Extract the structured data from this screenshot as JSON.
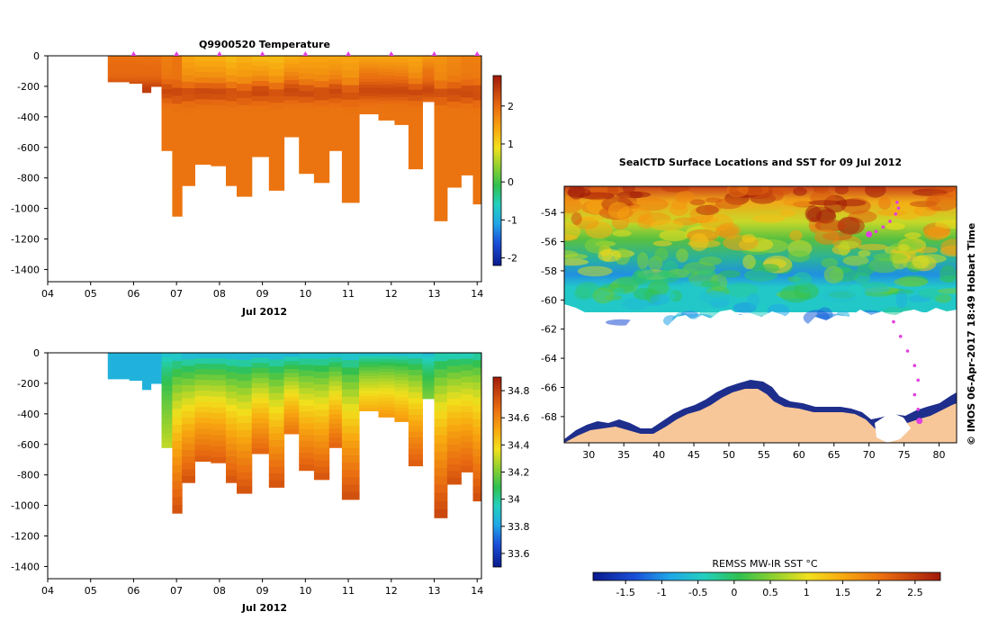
{
  "chart_data": [
    {
      "type": "heatmap",
      "title": "Q9900520  Temperature",
      "xlabel": "Jul 2012",
      "ylabel": "",
      "x_ticks": [
        "04",
        "05",
        "06",
        "07",
        "08",
        "09",
        "10",
        "11",
        "12",
        "13",
        "14"
      ],
      "x_range": [
        4,
        14.1
      ],
      "y_ticks": [
        "0",
        "-200",
        "-400",
        "-600",
        "-800",
        "-1000",
        "-1200",
        "-1400"
      ],
      "y_range": [
        -1480,
        0
      ],
      "colorbar_ticks": [
        "2",
        "1",
        "0",
        "-1",
        "-2"
      ],
      "colorbar_range": [
        -2.2,
        2.8
      ],
      "profile_marker_days": [
        6,
        7,
        8,
        9,
        10,
        11,
        12,
        13,
        14
      ],
      "profiles": [
        {
          "day": 5.7,
          "depth": -170,
          "surf": 1.9,
          "deep": 2.0
        },
        {
          "day": 6.1,
          "depth": -180,
          "surf": 1.9,
          "deep": 2.0
        },
        {
          "day": 6.3,
          "depth": -240,
          "surf": 1.9,
          "deep": 2.0
        },
        {
          "day": 6.5,
          "depth": -200,
          "surf": 1.9,
          "deep": 2.0
        },
        {
          "day": 6.8,
          "depth": -620,
          "surf": 1.8,
          "deep": 1.9
        },
        {
          "day": 7.0,
          "depth": -1050,
          "surf": 1.9,
          "deep": 1.9
        },
        {
          "day": 7.25,
          "depth": -850,
          "surf": 1.4,
          "deep": 1.9
        },
        {
          "day": 7.6,
          "depth": -710,
          "surf": 1.3,
          "deep": 1.9
        },
        {
          "day": 8.0,
          "depth": -720,
          "surf": 1.3,
          "deep": 1.9
        },
        {
          "day": 8.3,
          "depth": -850,
          "surf": 1.2,
          "deep": 1.9
        },
        {
          "day": 8.5,
          "depth": -920,
          "surf": 1.3,
          "deep": 1.9
        },
        {
          "day": 9.0,
          "depth": -660,
          "surf": 1.2,
          "deep": 1.9
        },
        {
          "day": 9.3,
          "depth": -880,
          "surf": 1.2,
          "deep": 1.9
        },
        {
          "day": 9.7,
          "depth": -530,
          "surf": 1.3,
          "deep": 1.9
        },
        {
          "day": 10.0,
          "depth": -770,
          "surf": 1.4,
          "deep": 1.9
        },
        {
          "day": 10.4,
          "depth": -830,
          "surf": 1.4,
          "deep": 1.9
        },
        {
          "day": 10.7,
          "depth": -620,
          "surf": 1.4,
          "deep": 1.9
        },
        {
          "day": 11.0,
          "depth": -960,
          "surf": 1.4,
          "deep": 1.9
        },
        {
          "day": 11.5,
          "depth": -380,
          "surf": 1.4,
          "deep": 1.9
        },
        {
          "day": 11.9,
          "depth": -420,
          "surf": 1.4,
          "deep": 1.9
        },
        {
          "day": 12.25,
          "depth": -450,
          "surf": 1.4,
          "deep": 1.9
        },
        {
          "day": 12.55,
          "depth": -740,
          "surf": 1.4,
          "deep": 1.9
        },
        {
          "day": 12.9,
          "depth": -300,
          "surf": 1.5,
          "deep": 1.9
        },
        {
          "day": 13.1,
          "depth": -1080,
          "surf": 1.6,
          "deep": 1.9
        },
        {
          "day": 13.5,
          "depth": -860,
          "surf": 1.7,
          "deep": 1.9
        },
        {
          "day": 13.75,
          "depth": -780,
          "surf": 1.8,
          "deep": 1.9
        },
        {
          "day": 14.05,
          "depth": -970,
          "surf": 1.8,
          "deep": 1.9
        }
      ]
    },
    {
      "type": "heatmap",
      "title": "",
      "xlabel": "Jul 2012",
      "ylabel": "",
      "x_ticks": [
        "04",
        "05",
        "06",
        "07",
        "08",
        "09",
        "10",
        "11",
        "12",
        "13",
        "14"
      ],
      "x_range": [
        4,
        14.1
      ],
      "y_ticks": [
        "0",
        "-200",
        "-400",
        "-600",
        "-800",
        "-1000",
        "-1200",
        "-1400"
      ],
      "y_range": [
        -1480,
        0
      ],
      "colorbar_ticks": [
        "34.8",
        "34.6",
        "34.4",
        "34.2",
        "34",
        "33.8",
        "33.6"
      ],
      "colorbar_range": [
        33.5,
        34.9
      ],
      "profiles": [
        {
          "day": 5.7,
          "depth": -170,
          "surf": 33.85,
          "deep": 33.85
        },
        {
          "day": 6.1,
          "depth": -180,
          "surf": 33.85,
          "deep": 33.85
        },
        {
          "day": 6.3,
          "depth": -240,
          "surf": 33.85,
          "deep": 33.85
        },
        {
          "day": 6.5,
          "depth": -200,
          "surf": 33.85,
          "deep": 33.85
        },
        {
          "day": 6.8,
          "depth": -620,
          "surf": 33.85,
          "deep": 34.3
        },
        {
          "day": 7.0,
          "depth": -1050,
          "surf": 33.8,
          "deep": 34.75
        },
        {
          "day": 7.25,
          "depth": -850,
          "surf": 33.75,
          "deep": 34.75
        },
        {
          "day": 7.6,
          "depth": -710,
          "surf": 33.75,
          "deep": 34.72
        },
        {
          "day": 8.0,
          "depth": -720,
          "surf": 33.75,
          "deep": 34.72
        },
        {
          "day": 8.3,
          "depth": -850,
          "surf": 33.75,
          "deep": 34.74
        },
        {
          "day": 8.5,
          "depth": -920,
          "surf": 33.75,
          "deep": 34.75
        },
        {
          "day": 9.0,
          "depth": -660,
          "surf": 33.75,
          "deep": 34.7
        },
        {
          "day": 9.3,
          "depth": -880,
          "surf": 33.75,
          "deep": 34.75
        },
        {
          "day": 9.7,
          "depth": -530,
          "surf": 33.75,
          "deep": 34.65
        },
        {
          "day": 10.0,
          "depth": -770,
          "surf": 33.78,
          "deep": 34.72
        },
        {
          "day": 10.4,
          "depth": -830,
          "surf": 33.78,
          "deep": 34.74
        },
        {
          "day": 10.7,
          "depth": -620,
          "surf": 33.78,
          "deep": 34.7
        },
        {
          "day": 11.0,
          "depth": -960,
          "surf": 33.78,
          "deep": 34.76
        },
        {
          "day": 11.5,
          "depth": -380,
          "surf": 33.8,
          "deep": 34.5
        },
        {
          "day": 11.9,
          "depth": -420,
          "surf": 33.8,
          "deep": 34.55
        },
        {
          "day": 12.25,
          "depth": -450,
          "surf": 33.8,
          "deep": 34.55
        },
        {
          "day": 12.55,
          "depth": -740,
          "surf": 33.8,
          "deep": 34.72
        },
        {
          "day": 12.9,
          "depth": -300,
          "surf": 33.82,
          "deep": 34.2
        },
        {
          "day": 13.1,
          "depth": -1080,
          "surf": 33.85,
          "deep": 34.78
        },
        {
          "day": 13.5,
          "depth": -860,
          "surf": 33.85,
          "deep": 34.75
        },
        {
          "day": 13.75,
          "depth": -780,
          "surf": 33.85,
          "deep": 34.72
        },
        {
          "day": 14.05,
          "depth": -970,
          "surf": 33.88,
          "deep": 34.76
        }
      ]
    },
    {
      "type": "heatmap",
      "title": "SealCTD Surface Locations and SST for 09 Jul 2012",
      "xlabel": "",
      "ylabel": "",
      "x_ticks": [
        "30",
        "35",
        "40",
        "45",
        "50",
        "55",
        "60",
        "65",
        "70",
        "75",
        "80"
      ],
      "x_range": [
        26.5,
        82.5
      ],
      "y_ticks": [
        "-54",
        "-56",
        "-58",
        "-60",
        "-62",
        "-64",
        "-66",
        "-68"
      ],
      "y_range": [
        -69.8,
        -52.2
      ],
      "colorbar_label": "REMSS MW-IR SST °C",
      "colorbar_ticks": [
        "-1.5",
        "-1",
        "-0.5",
        "0",
        "0.5",
        "1",
        "1.5",
        "2",
        "2.5"
      ],
      "colorbar_range": [
        -1.95,
        2.85
      ],
      "track_points": [
        {
          "lon": 74.0,
          "lat": -53.3
        },
        {
          "lon": 74.2,
          "lat": -53.7
        },
        {
          "lon": 73.8,
          "lat": -54.1
        },
        {
          "lon": 73.0,
          "lat": -54.6
        },
        {
          "lon": 72.0,
          "lat": -55.0
        },
        {
          "lon": 71.0,
          "lat": -55.3
        },
        {
          "lon": 70.0,
          "lat": -55.5
        },
        {
          "lon": 73.5,
          "lat": -61.5
        },
        {
          "lon": 74.5,
          "lat": -62.5
        },
        {
          "lon": 75.5,
          "lat": -63.5
        },
        {
          "lon": 76.5,
          "lat": -64.5
        },
        {
          "lon": 77.0,
          "lat": -65.5
        },
        {
          "lon": 76.5,
          "lat": -66.5
        },
        {
          "lon": 77.0,
          "lat": -67.5
        },
        {
          "lon": 77.2,
          "lat": -68.3
        }
      ]
    }
  ],
  "watermark": "© IMOS 06-Apr-2017 18:49 Hobart Time",
  "colors": {
    "land": "#f7c79a",
    "coast_shelf": "#1e2e8c",
    "track": "#e040e0"
  }
}
